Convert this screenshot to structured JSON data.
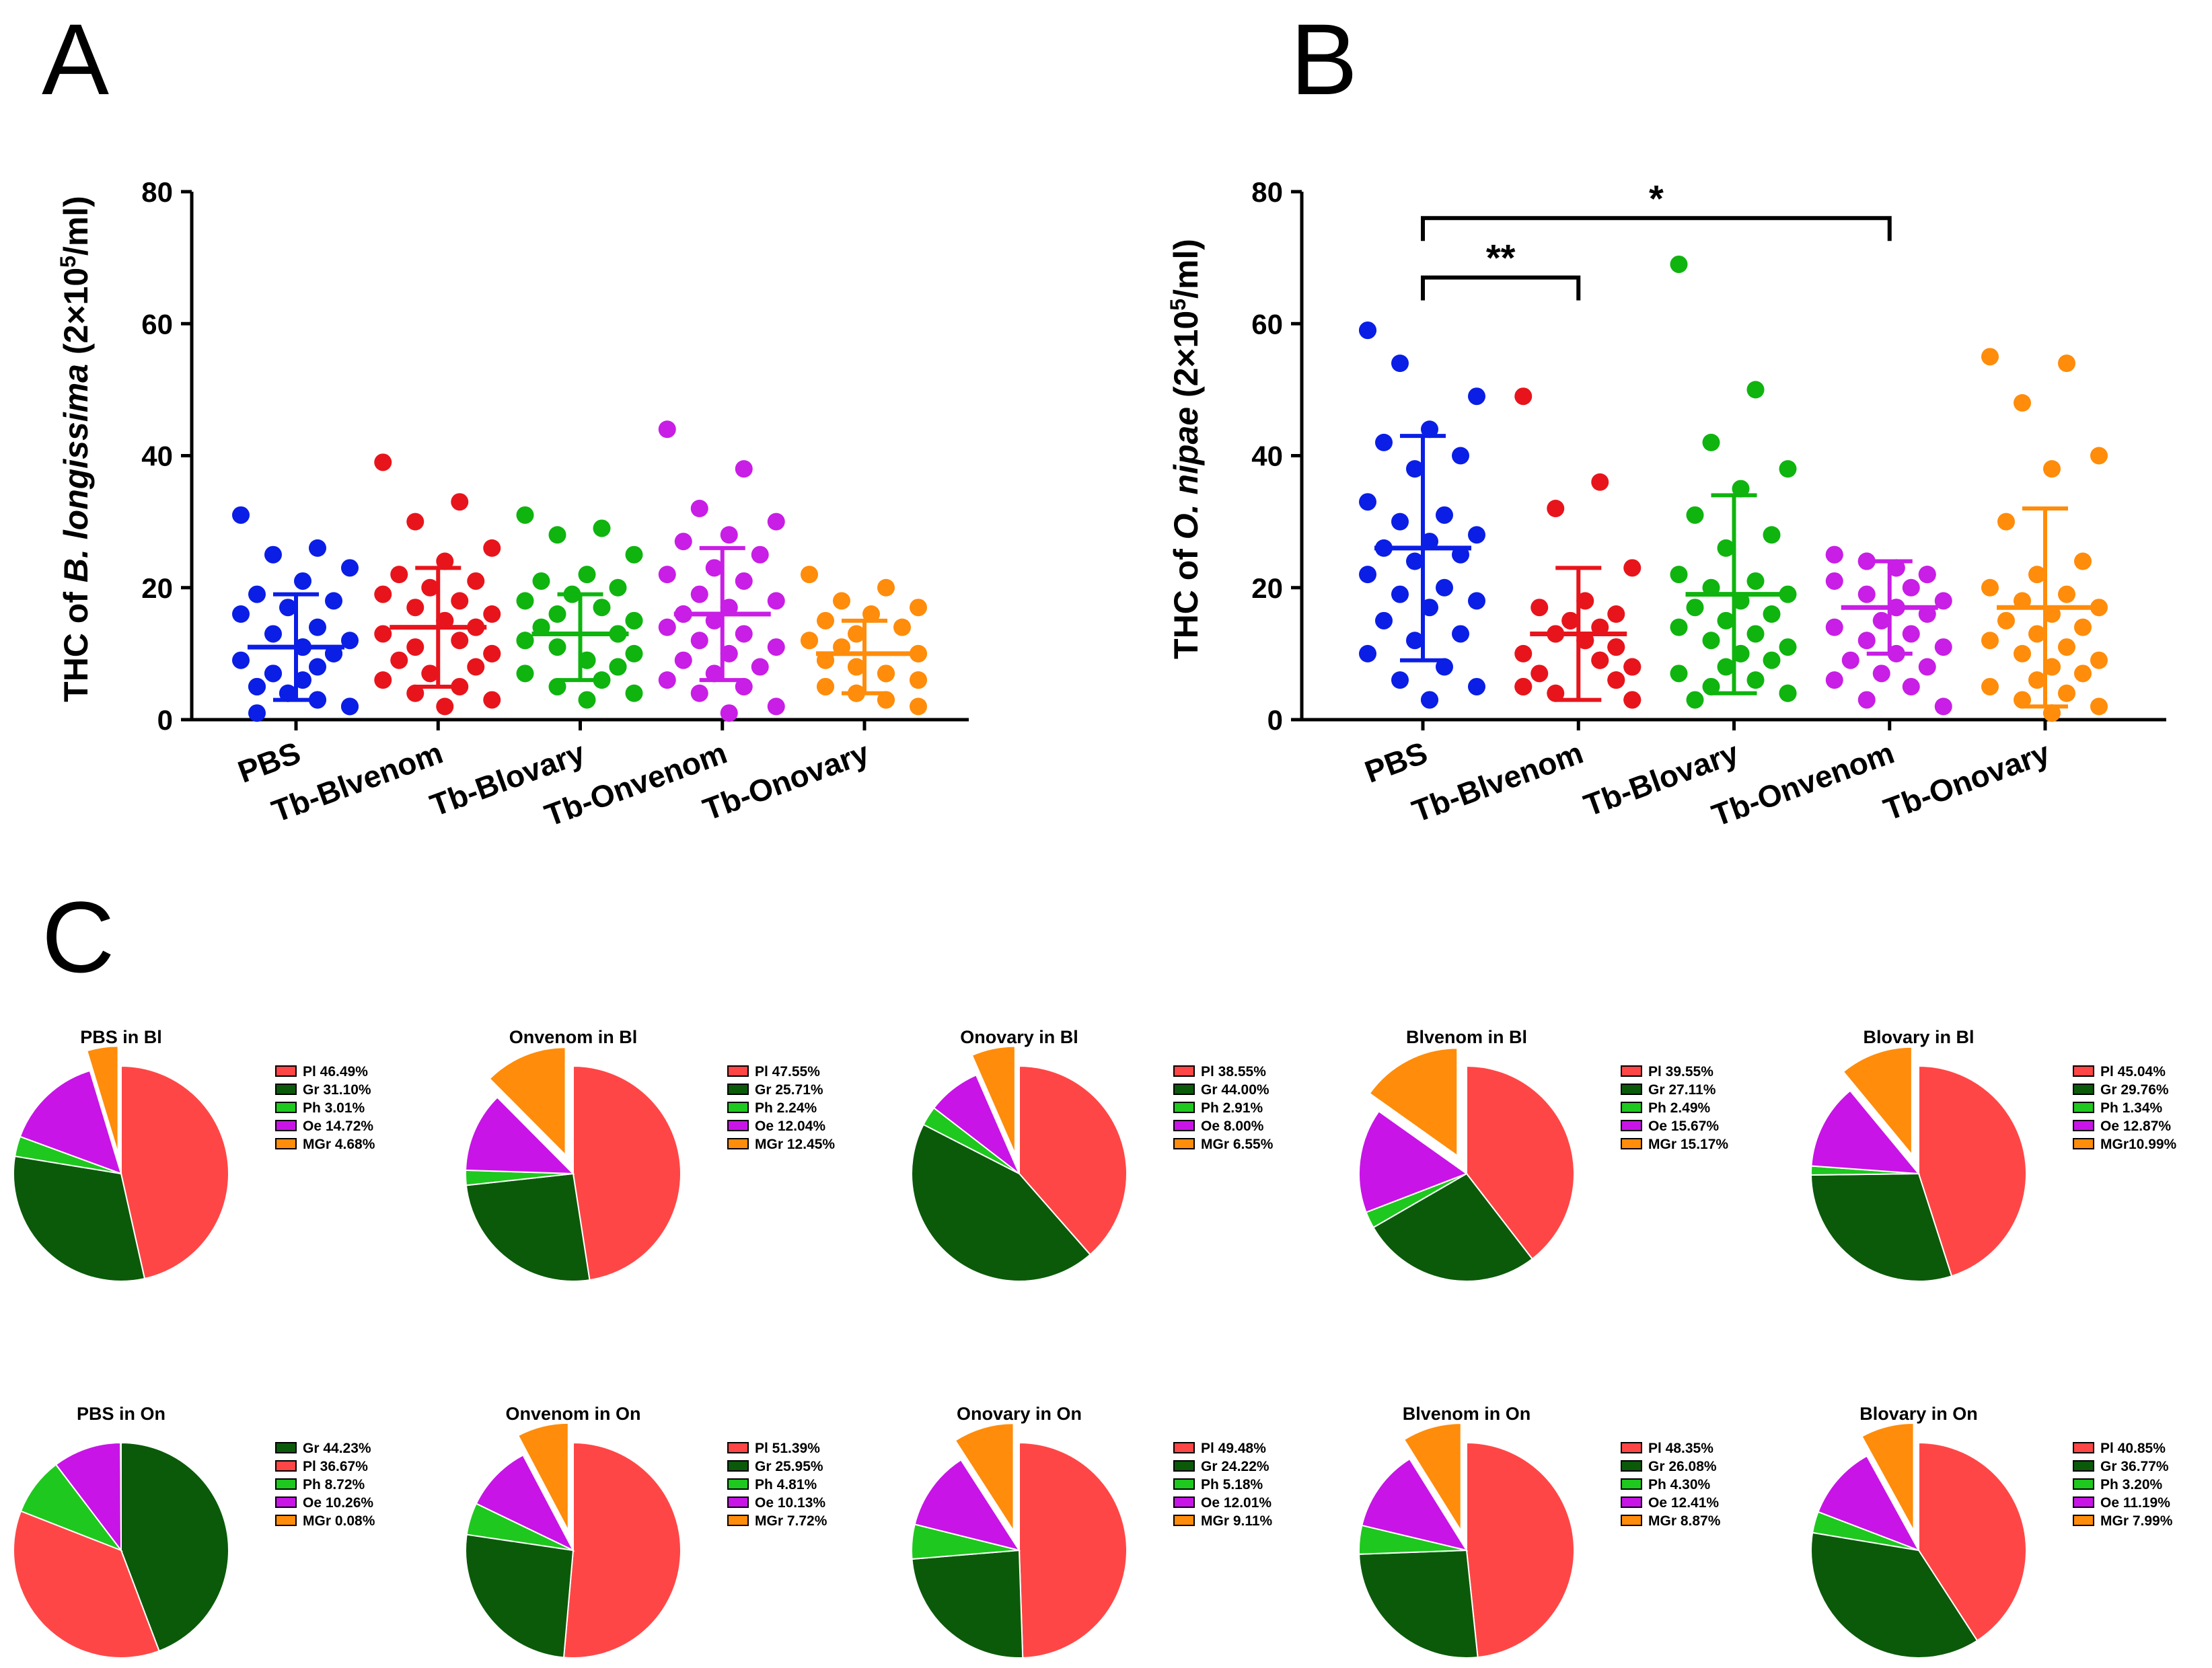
{
  "panel_letters": {
    "a": "A",
    "b": "B",
    "c": "C"
  },
  "colors": {
    "PBS": "#0a1ee6",
    "Tb-Blvenom": "#e8141c",
    "Tb-Blovary": "#0fb40f",
    "Tb-Onvenom": "#c81ee6",
    "Tb-Onovary": "#ff8c0a",
    "Pl": "#ff4646",
    "Gr": "#0a5a0a",
    "Ph": "#1ec81e",
    "Oe": "#c814e6",
    "MGr": "#ff8c0a",
    "axis": "#000000"
  },
  "chart_data": [
    {
      "type": "scatter",
      "panel": "A",
      "ylabel_pre": "THC of ",
      "ylabel_italic": "B. longissima",
      "ylabel_post_base": " (2×10",
      "ylabel_sup": "5",
      "ylabel_post_end": "/ml)",
      "ylim": [
        0,
        80
      ],
      "yticks": [
        "0",
        "20",
        "40",
        "60",
        "80"
      ],
      "categories": [
        "PBS",
        "Tb-Blvenom",
        "Tb-Blovary",
        "Tb-Onvenom",
        "Tb-Onovary"
      ],
      "series": [
        {
          "name": "PBS",
          "mean": 11,
          "sd_low": 3,
          "sd_high": 19,
          "points": [
            31,
            26,
            25,
            23,
            21,
            19,
            18,
            17,
            16,
            14,
            13,
            12,
            11,
            11,
            10,
            10,
            9,
            8,
            7,
            7,
            6,
            5,
            5,
            4,
            4,
            3,
            3,
            2,
            2,
            1
          ]
        },
        {
          "name": "Tb-Blvenom",
          "mean": 14,
          "sd_low": 5,
          "sd_high": 23,
          "points": [
            39,
            33,
            30,
            26,
            24,
            22,
            21,
            20,
            19,
            18,
            17,
            16,
            15,
            15,
            14,
            14,
            13,
            12,
            11,
            10,
            10,
            9,
            8,
            7,
            6,
            5,
            4,
            3,
            2
          ]
        },
        {
          "name": "Tb-Blovary",
          "mean": 13,
          "sd_low": 6,
          "sd_high": 19,
          "points": [
            31,
            29,
            28,
            25,
            22,
            21,
            20,
            19,
            18,
            17,
            16,
            15,
            15,
            14,
            13,
            13,
            12,
            12,
            11,
            10,
            9,
            9,
            8,
            8,
            7,
            6,
            5,
            4,
            3
          ]
        },
        {
          "name": "Tb-Onvenom",
          "mean": 16,
          "sd_low": 6,
          "sd_high": 26,
          "points": [
            44,
            38,
            32,
            30,
            28,
            27,
            25,
            23,
            22,
            21,
            19,
            18,
            17,
            16,
            16,
            15,
            14,
            13,
            12,
            11,
            10,
            9,
            8,
            7,
            6,
            5,
            4,
            2,
            1
          ]
        },
        {
          "name": "Tb-Onovary",
          "mean": 10,
          "sd_low": 4,
          "sd_high": 15,
          "points": [
            22,
            20,
            18,
            17,
            16,
            15,
            14,
            13,
            12,
            12,
            11,
            10,
            10,
            9,
            9,
            8,
            8,
            7,
            7,
            6,
            6,
            5,
            5,
            4,
            4,
            3,
            3,
            2
          ]
        }
      ]
    },
    {
      "type": "scatter",
      "panel": "B",
      "ylabel_pre": "THC of ",
      "ylabel_italic": "O. nipae",
      "ylabel_post_base": " (2×10",
      "ylabel_sup": "5",
      "ylabel_post_end": "/ml)",
      "ylim": [
        0,
        80
      ],
      "yticks": [
        "0",
        "20",
        "40",
        "60",
        "80"
      ],
      "categories": [
        "PBS",
        "Tb-Blvenom",
        "Tb-Blovary",
        "Tb-Onvenom",
        "Tb-Onovary"
      ],
      "significance": [
        {
          "from": "PBS",
          "to": "Tb-Blvenom",
          "label": "**",
          "y": 67
        },
        {
          "from": "PBS",
          "to": "Tb-Onvenom",
          "label": "*",
          "y": 76
        }
      ],
      "series": [
        {
          "name": "PBS",
          "mean": 26,
          "sd_low": 9,
          "sd_high": 43,
          "points": [
            59,
            59,
            54,
            49,
            44,
            42,
            40,
            38,
            33,
            31,
            30,
            28,
            27,
            26,
            25,
            24,
            22,
            20,
            19,
            18,
            17,
            15,
            13,
            12,
            10,
            8,
            6,
            5,
            3,
            3
          ]
        },
        {
          "name": "Tb-Blvenom",
          "mean": 13,
          "sd_low": 3,
          "sd_high": 23,
          "points": [
            49,
            36,
            32,
            23,
            18,
            17,
            16,
            15,
            15,
            14,
            13,
            13,
            12,
            12,
            11,
            11,
            10,
            9,
            9,
            8,
            8,
            7,
            6,
            6,
            5,
            5,
            4,
            3,
            3
          ]
        },
        {
          "name": "Tb-Blovary",
          "mean": 19,
          "sd_low": 4,
          "sd_high": 34,
          "points": [
            69,
            50,
            42,
            38,
            35,
            31,
            28,
            26,
            22,
            21,
            20,
            19,
            18,
            17,
            16,
            15,
            14,
            13,
            12,
            11,
            10,
            10,
            9,
            8,
            7,
            6,
            5,
            4,
            4,
            3
          ]
        },
        {
          "name": "Tb-Onvenom",
          "mean": 17,
          "sd_low": 10,
          "sd_high": 24,
          "points": [
            25,
            25,
            24,
            24,
            23,
            23,
            22,
            22,
            21,
            20,
            19,
            18,
            17,
            17,
            16,
            15,
            14,
            13,
            12,
            11,
            10,
            9,
            8,
            7,
            6,
            5,
            3,
            2
          ]
        },
        {
          "name": "Tb-Onovary",
          "mean": 17,
          "sd_low": 2,
          "sd_high": 32,
          "points": [
            55,
            54,
            48,
            40,
            38,
            30,
            24,
            22,
            20,
            19,
            18,
            17,
            16,
            15,
            14,
            13,
            12,
            11,
            10,
            9,
            8,
            8,
            7,
            6,
            5,
            4,
            3,
            2,
            1,
            1
          ]
        }
      ]
    },
    {
      "type": "pie",
      "panel": "C",
      "pies": [
        {
          "title": "PBS in Bl",
          "slices": [
            {
              "name": "Pl",
              "value": 46.49
            },
            {
              "name": "Gr",
              "value": 31.1
            },
            {
              "name": "Ph",
              "value": 3.01
            },
            {
              "name": "Oe",
              "value": 14.72
            },
            {
              "name": "MGr",
              "value": 4.68
            }
          ],
          "legend": [
            "Pl 46.49%",
            "Gr 31.10%",
            "Ph 3.01%",
            "Oe 14.72%",
            "MGr 4.68%"
          ]
        },
        {
          "title": "Onvenom in Bl",
          "slices": [
            {
              "name": "Pl",
              "value": 47.55
            },
            {
              "name": "Gr",
              "value": 25.71
            },
            {
              "name": "Ph",
              "value": 2.24
            },
            {
              "name": "Oe",
              "value": 12.04
            },
            {
              "name": "MGr",
              "value": 12.45
            }
          ],
          "legend": [
            "Pl 47.55%",
            "Gr 25.71%",
            "Ph 2.24%",
            "Oe 12.04%",
            "MGr 12.45%"
          ]
        },
        {
          "title": "Onovary in Bl",
          "slices": [
            {
              "name": "Pl",
              "value": 38.55
            },
            {
              "name": "Gr",
              "value": 44.0
            },
            {
              "name": "Ph",
              "value": 2.91
            },
            {
              "name": "Oe",
              "value": 8.0
            },
            {
              "name": "MGr",
              "value": 6.55
            }
          ],
          "legend": [
            "Pl 38.55%",
            "Gr 44.00%",
            "Ph 2.91%",
            "Oe 8.00%",
            "MGr 6.55%"
          ]
        },
        {
          "title": "Blvenom in Bl",
          "slices": [
            {
              "name": "Pl",
              "value": 39.55
            },
            {
              "name": "Gr",
              "value": 27.11
            },
            {
              "name": "Ph",
              "value": 2.49
            },
            {
              "name": "Oe",
              "value": 15.67
            },
            {
              "name": "MGr",
              "value": 15.17
            }
          ],
          "legend": [
            "Pl 39.55%",
            "Gr 27.11%",
            "Ph 2.49%",
            "Oe 15.67%",
            "MGr 15.17%"
          ]
        },
        {
          "title": "Blovary in Bl",
          "slices": [
            {
              "name": "Pl",
              "value": 45.04
            },
            {
              "name": "Gr",
              "value": 29.76
            },
            {
              "name": "Ph",
              "value": 1.34
            },
            {
              "name": "Oe",
              "value": 12.87
            },
            {
              "name": "MGr",
              "value": 10.99
            }
          ],
          "legend": [
            "Pl 45.04%",
            "Gr 29.76%",
            "Ph 1.34%",
            "Oe 12.87%",
            "MGr10.99%"
          ]
        },
        {
          "title": "PBS in On",
          "slices": [
            {
              "name": "Gr",
              "value": 44.23
            },
            {
              "name": "Pl",
              "value": 36.67
            },
            {
              "name": "Ph",
              "value": 8.72
            },
            {
              "name": "Oe",
              "value": 10.26
            },
            {
              "name": "MGr",
              "value": 0.08
            }
          ],
          "legend": [
            "Gr 44.23%",
            "Pl 36.67%",
            "Ph 8.72%",
            "Oe 10.26%",
            "MGr 0.08%"
          ]
        },
        {
          "title": "Onvenom in On",
          "slices": [
            {
              "name": "Pl",
              "value": 51.39
            },
            {
              "name": "Gr",
              "value": 25.95
            },
            {
              "name": "Ph",
              "value": 4.81
            },
            {
              "name": "Oe",
              "value": 10.13
            },
            {
              "name": "MGr",
              "value": 7.72
            }
          ],
          "legend": [
            "Pl 51.39%",
            "Gr 25.95%",
            "Ph 4.81%",
            "Oe 10.13%",
            "MGr 7.72%"
          ]
        },
        {
          "title": "Onovary in On",
          "slices": [
            {
              "name": "Pl",
              "value": 49.48
            },
            {
              "name": "Gr",
              "value": 24.22
            },
            {
              "name": "Ph",
              "value": 5.18
            },
            {
              "name": "Oe",
              "value": 12.01
            },
            {
              "name": "MGr",
              "value": 9.11
            }
          ],
          "legend": [
            "Pl 49.48%",
            "Gr 24.22%",
            "Ph 5.18%",
            "Oe 12.01%",
            "MGr 9.11%"
          ]
        },
        {
          "title": "Blvenom in On",
          "slices": [
            {
              "name": "Pl",
              "value": 48.35
            },
            {
              "name": "Gr",
              "value": 26.08
            },
            {
              "name": "Ph",
              "value": 4.3
            },
            {
              "name": "Oe",
              "value": 12.41
            },
            {
              "name": "MGr",
              "value": 8.87
            }
          ],
          "legend": [
            "Pl 48.35%",
            "Gr 26.08%",
            "Ph 4.30%",
            "Oe 12.41%",
            "MGr 8.87%"
          ]
        },
        {
          "title": "Blovary in On",
          "slices": [
            {
              "name": "Pl",
              "value": 40.85
            },
            {
              "name": "Gr",
              "value": 36.77
            },
            {
              "name": "Ph",
              "value": 3.2
            },
            {
              "name": "Oe",
              "value": 11.19
            },
            {
              "name": "MGr",
              "value": 7.99
            }
          ],
          "legend": [
            "Pl 40.85%",
            "Gr 36.77%",
            "Ph 3.20%",
            "Oe 11.19%",
            "MGr 7.99%"
          ]
        }
      ]
    }
  ]
}
